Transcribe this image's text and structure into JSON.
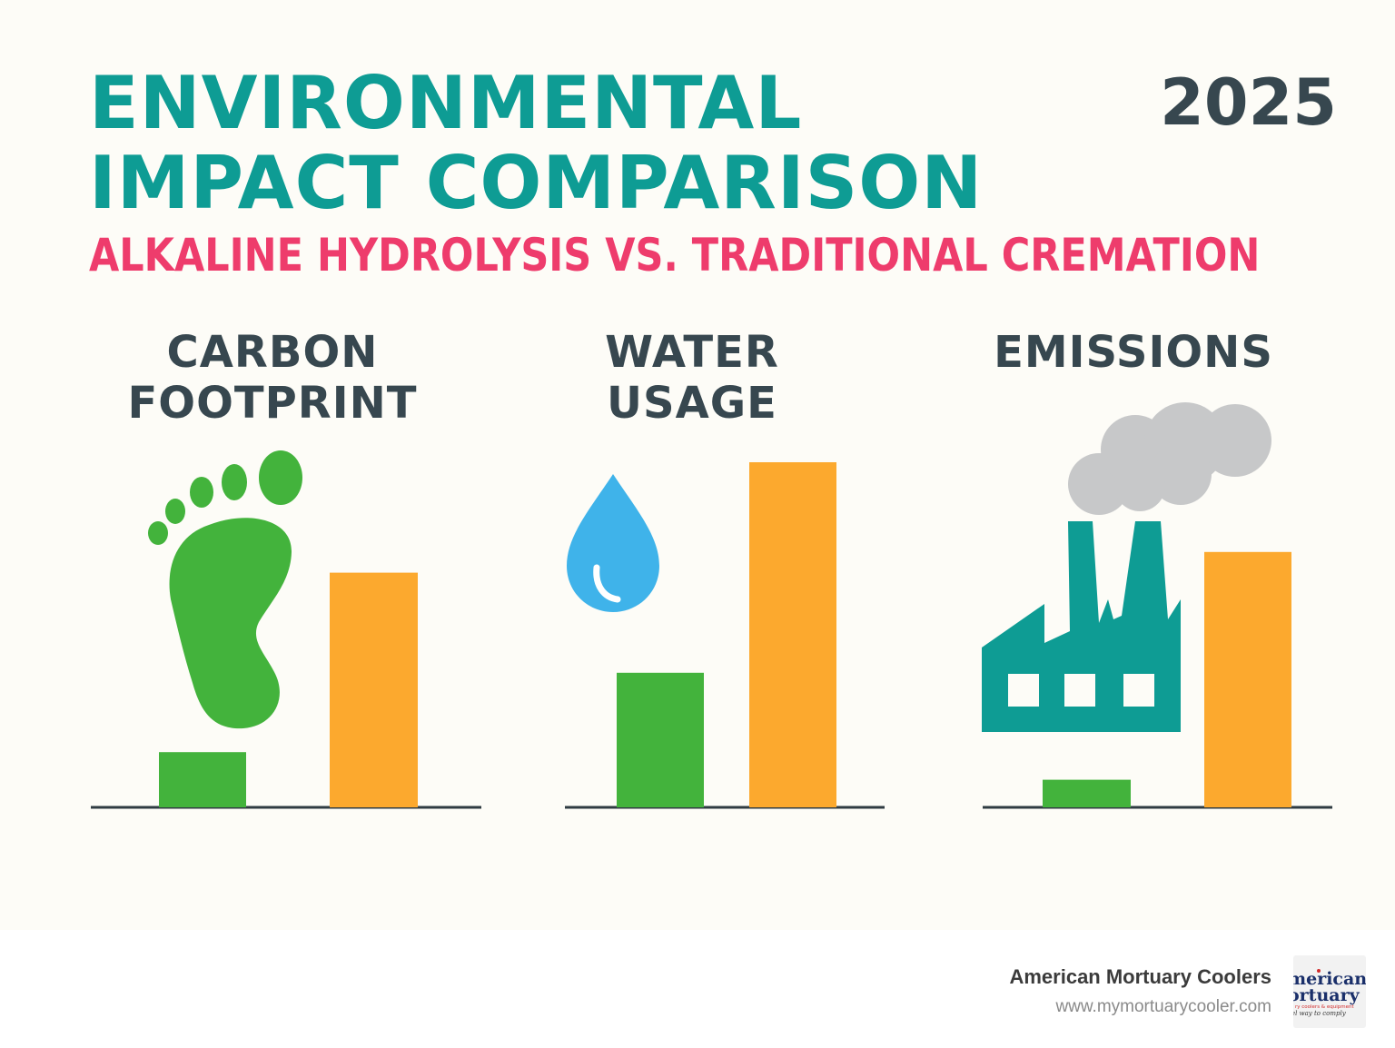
{
  "title": "ENVIRONMENTAL IMPACT COMPARISON",
  "year": "2025",
  "subtitle": "ALKALINE HYDROLYSIS VS. TRADITIONAL CREMATION",
  "colors": {
    "alkaline_hydrolysis": "#43b33c",
    "traditional_cremation": "#fca92e",
    "title": "#0e9c94",
    "subtitle": "#ee3c6c",
    "text": "#37474f"
  },
  "panels": [
    {
      "title_line1": "CARBON",
      "title_line2": "FOOTPRINT",
      "icon": "footprint-icon"
    },
    {
      "title_line1": "WATER",
      "title_line2": "USAGE",
      "icon": "water-drop-icon"
    },
    {
      "title_line1": "EMISSIONS",
      "title_line2": "",
      "icon": "factory-icon"
    }
  ],
  "chart_data": {
    "type": "bar",
    "title": "",
    "xlabel": "",
    "ylabel": "",
    "categories": [
      "CARBON FOOTPRINT",
      "WATER USAGE",
      "EMISSIONS"
    ],
    "series": [
      {
        "values": [
          16,
          39,
          8
        ]
      },
      {
        "values": [
          68,
          100,
          74
        ]
      }
    ],
    "ylim": [
      0,
      100
    ],
    "grid": false,
    "legend": "none"
  },
  "footer": {
    "brand": "American Mortuary Coolers",
    "url": "www.mymortuarycooler.com",
    "logo_text_line1": "merican",
    "logo_text_line2": "ortuary",
    "logo_text_line3": "ry coolers & equipment",
    "logo_text_line4": "el way to comply"
  }
}
